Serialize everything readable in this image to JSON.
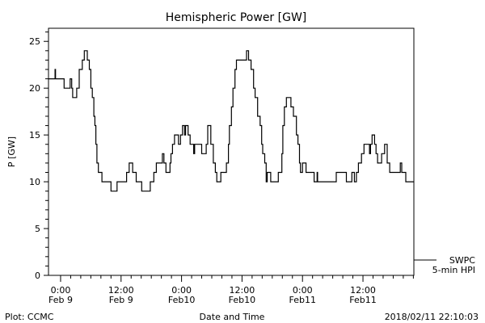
{
  "chart_data": {
    "type": "line",
    "title": "Hemispheric Power [GW]",
    "xlabel": "Date and Time",
    "ylabel": "P [GW]",
    "x_units": "hours since 2018-02-09 00:00",
    "xlim": [
      -2.4,
      70.1
    ],
    "ylim": [
      0,
      26.4
    ],
    "yticks": [
      0,
      5,
      10,
      15,
      20,
      25
    ],
    "xticks": [
      {
        "x": 0,
        "line1": "0:00",
        "line2": "Feb 9"
      },
      {
        "x": 12,
        "line1": "12:00",
        "line2": "Feb 9"
      },
      {
        "x": 24,
        "line1": "0:00",
        "line2": "Feb10"
      },
      {
        "x": 36,
        "line1": "12:00",
        "line2": "Feb10"
      },
      {
        "x": 48,
        "line1": "0:00",
        "line2": "Feb11"
      },
      {
        "x": 60,
        "line1": "12:00",
        "line2": "Feb11"
      }
    ],
    "legend": {
      "position": "bottom-right",
      "line1": "SWPC",
      "line2": "5-min HPI"
    },
    "series": [
      {
        "name": "SWPC 5-min HPI",
        "step": true,
        "points": [
          [
            -2.4,
            21
          ],
          [
            -1.1,
            22
          ],
          [
            -1.0,
            21
          ],
          [
            0.7,
            20
          ],
          [
            1.9,
            21
          ],
          [
            2.2,
            20
          ],
          [
            2.4,
            19
          ],
          [
            3.2,
            20
          ],
          [
            3.7,
            22
          ],
          [
            4.3,
            23
          ],
          [
            4.7,
            24
          ],
          [
            5.3,
            23
          ],
          [
            5.7,
            22
          ],
          [
            6.0,
            20
          ],
          [
            6.3,
            19
          ],
          [
            6.6,
            17
          ],
          [
            6.8,
            16
          ],
          [
            7.0,
            14
          ],
          [
            7.2,
            12
          ],
          [
            7.5,
            11
          ],
          [
            8.2,
            10
          ],
          [
            10.0,
            9
          ],
          [
            11.2,
            10
          ],
          [
            13.1,
            11
          ],
          [
            13.6,
            12
          ],
          [
            14.3,
            11
          ],
          [
            15.0,
            10
          ],
          [
            16.1,
            9
          ],
          [
            17.8,
            10
          ],
          [
            18.5,
            11
          ],
          [
            19.0,
            12
          ],
          [
            20.2,
            13
          ],
          [
            20.5,
            12
          ],
          [
            20.9,
            11
          ],
          [
            21.7,
            12
          ],
          [
            21.9,
            13
          ],
          [
            22.2,
            14
          ],
          [
            22.6,
            15
          ],
          [
            23.4,
            14
          ],
          [
            23.8,
            15
          ],
          [
            24.2,
            16
          ],
          [
            24.6,
            15
          ],
          [
            24.8,
            16
          ],
          [
            25.3,
            15
          ],
          [
            25.7,
            14
          ],
          [
            26.4,
            13
          ],
          [
            26.6,
            14
          ],
          [
            28.0,
            13
          ],
          [
            28.9,
            14
          ],
          [
            29.2,
            16
          ],
          [
            29.8,
            14
          ],
          [
            30.3,
            12
          ],
          [
            30.7,
            11
          ],
          [
            31.0,
            10
          ],
          [
            31.3,
            10
          ],
          [
            31.8,
            11
          ],
          [
            32.9,
            12
          ],
          [
            33.3,
            14
          ],
          [
            33.5,
            16
          ],
          [
            33.9,
            18
          ],
          [
            34.2,
            20
          ],
          [
            34.6,
            22
          ],
          [
            34.9,
            23
          ],
          [
            36.9,
            24
          ],
          [
            37.3,
            23
          ],
          [
            37.8,
            22
          ],
          [
            38.3,
            20
          ],
          [
            38.6,
            19
          ],
          [
            39.1,
            17
          ],
          [
            39.6,
            16
          ],
          [
            39.9,
            14
          ],
          [
            40.1,
            13
          ],
          [
            40.5,
            12
          ],
          [
            40.8,
            10
          ],
          [
            41.0,
            11
          ],
          [
            41.7,
            10
          ],
          [
            43.2,
            11
          ],
          [
            43.9,
            13
          ],
          [
            44.1,
            16
          ],
          [
            44.4,
            18
          ],
          [
            44.8,
            19
          ],
          [
            45.7,
            18
          ],
          [
            46.2,
            17
          ],
          [
            46.8,
            15
          ],
          [
            47.1,
            14
          ],
          [
            47.4,
            12
          ],
          [
            47.6,
            11
          ],
          [
            48.0,
            12
          ],
          [
            48.7,
            11
          ],
          [
            50.3,
            10
          ],
          [
            50.9,
            11
          ],
          [
            51.0,
            10
          ],
          [
            54.7,
            11
          ],
          [
            56.7,
            10
          ],
          [
            57.8,
            11
          ],
          [
            58.3,
            10
          ],
          [
            58.7,
            11
          ],
          [
            59.1,
            12
          ],
          [
            59.7,
            13
          ],
          [
            60.2,
            14
          ],
          [
            61.3,
            13
          ],
          [
            61.5,
            14
          ],
          [
            61.8,
            15
          ],
          [
            62.3,
            14
          ],
          [
            62.6,
            13
          ],
          [
            62.9,
            12
          ],
          [
            63.7,
            13
          ],
          [
            64.3,
            14
          ],
          [
            64.8,
            12
          ],
          [
            65.3,
            11
          ],
          [
            67.4,
            12
          ],
          [
            67.7,
            11
          ],
          [
            68.5,
            10
          ],
          [
            70.1,
            10
          ]
        ]
      }
    ]
  },
  "footer": {
    "left": "Plot: CCMC",
    "right": "2018/02/11 22:10:03"
  }
}
